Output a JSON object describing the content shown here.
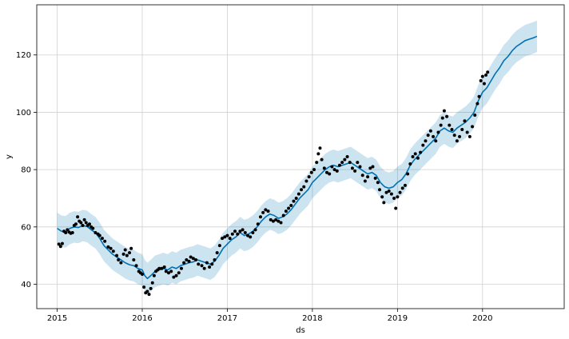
{
  "chart_data": {
    "type": "line",
    "title": "",
    "xlabel": "ds",
    "ylabel": "y",
    "x_tick_labels": [
      "2015",
      "2016",
      "2017",
      "2018",
      "2019",
      "2020"
    ],
    "y_tick_labels": [
      "40",
      "60",
      "80",
      "100",
      "120"
    ],
    "x_ticks": [
      2015,
      2016,
      2017,
      2018,
      2019,
      2020
    ],
    "y_ticks": [
      40,
      60,
      80,
      100,
      120
    ],
    "xlim": [
      2014.76,
      2020.96
    ],
    "ylim": [
      31.5,
      137.5
    ],
    "grid": true,
    "colors": {
      "forecast": "#0072B2",
      "interval": "#0072B2",
      "observed": "#000000",
      "grid": "#d0d0d0"
    },
    "series": [
      {
        "kind": "forecast-line",
        "points": [
          [
            2015.0,
            59.5
          ],
          [
            2015.05,
            58.5
          ],
          [
            2015.1,
            58.3
          ],
          [
            2015.15,
            59.5
          ],
          [
            2015.2,
            60.0
          ],
          [
            2015.25,
            59.8
          ],
          [
            2015.3,
            60.5
          ],
          [
            2015.35,
            60.2
          ],
          [
            2015.4,
            59.0
          ],
          [
            2015.45,
            58.0
          ],
          [
            2015.5,
            56.0
          ],
          [
            2015.55,
            53.5
          ],
          [
            2015.6,
            52.0
          ],
          [
            2015.65,
            50.5
          ],
          [
            2015.7,
            49.5
          ],
          [
            2015.75,
            48.5
          ],
          [
            2015.8,
            47.5
          ],
          [
            2015.85,
            46.8
          ],
          [
            2015.9,
            46.5
          ],
          [
            2015.95,
            45.5
          ],
          [
            2016.0,
            45.0
          ],
          [
            2016.03,
            43.0
          ],
          [
            2016.06,
            42.0
          ],
          [
            2016.1,
            43.0
          ],
          [
            2016.15,
            44.5
          ],
          [
            2016.2,
            45.0
          ],
          [
            2016.25,
            45.5
          ],
          [
            2016.3,
            45.0
          ],
          [
            2016.35,
            46.0
          ],
          [
            2016.4,
            45.5
          ],
          [
            2016.45,
            46.5
          ],
          [
            2016.5,
            47.0
          ],
          [
            2016.55,
            47.5
          ],
          [
            2016.6,
            47.8
          ],
          [
            2016.65,
            48.5
          ],
          [
            2016.7,
            48.0
          ],
          [
            2016.75,
            47.5
          ],
          [
            2016.8,
            47.0
          ],
          [
            2016.85,
            48.0
          ],
          [
            2016.9,
            50.0
          ],
          [
            2016.95,
            52.5
          ],
          [
            2017.0,
            54.0
          ],
          [
            2017.05,
            55.5
          ],
          [
            2017.1,
            56.5
          ],
          [
            2017.15,
            58.0
          ],
          [
            2017.2,
            57.0
          ],
          [
            2017.25,
            57.5
          ],
          [
            2017.3,
            58.5
          ],
          [
            2017.35,
            60.0
          ],
          [
            2017.4,
            62.0
          ],
          [
            2017.45,
            63.5
          ],
          [
            2017.5,
            64.5
          ],
          [
            2017.55,
            64.0
          ],
          [
            2017.6,
            63.0
          ],
          [
            2017.65,
            63.5
          ],
          [
            2017.7,
            64.5
          ],
          [
            2017.75,
            66.0
          ],
          [
            2017.8,
            68.0
          ],
          [
            2017.85,
            70.0
          ],
          [
            2017.9,
            71.5
          ],
          [
            2017.95,
            73.0
          ],
          [
            2018.0,
            75.5
          ],
          [
            2018.05,
            77.0
          ],
          [
            2018.1,
            78.5
          ],
          [
            2018.15,
            80.0
          ],
          [
            2018.2,
            81.0
          ],
          [
            2018.25,
            81.5
          ],
          [
            2018.3,
            81.0
          ],
          [
            2018.35,
            81.5
          ],
          [
            2018.4,
            82.0
          ],
          [
            2018.45,
            82.5
          ],
          [
            2018.5,
            81.5
          ],
          [
            2018.55,
            80.5
          ],
          [
            2018.6,
            79.5
          ],
          [
            2018.65,
            78.5
          ],
          [
            2018.7,
            79.0
          ],
          [
            2018.75,
            78.0
          ],
          [
            2018.8,
            75.5
          ],
          [
            2018.85,
            74.0
          ],
          [
            2018.9,
            73.5
          ],
          [
            2018.95,
            74.0
          ],
          [
            2019.0,
            75.5
          ],
          [
            2019.05,
            76.5
          ],
          [
            2019.1,
            78.5
          ],
          [
            2019.15,
            81.5
          ],
          [
            2019.2,
            83.5
          ],
          [
            2019.25,
            85.0
          ],
          [
            2019.3,
            86.5
          ],
          [
            2019.35,
            88.0
          ],
          [
            2019.4,
            89.5
          ],
          [
            2019.45,
            91.0
          ],
          [
            2019.5,
            93.5
          ],
          [
            2019.55,
            94.5
          ],
          [
            2019.6,
            93.5
          ],
          [
            2019.65,
            93.0
          ],
          [
            2019.7,
            94.5
          ],
          [
            2019.75,
            95.5
          ],
          [
            2019.8,
            96.5
          ],
          [
            2019.85,
            98.0
          ],
          [
            2019.9,
            100.0
          ],
          [
            2019.95,
            104.0
          ],
          [
            2020.0,
            107.0
          ],
          [
            2020.05,
            108.5
          ],
          [
            2020.1,
            111.0
          ],
          [
            2020.15,
            113.5
          ],
          [
            2020.2,
            115.5
          ],
          [
            2020.25,
            118.0
          ],
          [
            2020.3,
            119.5
          ],
          [
            2020.35,
            121.5
          ],
          [
            2020.4,
            123.0
          ],
          [
            2020.45,
            124.0
          ],
          [
            2020.5,
            125.0
          ],
          [
            2020.55,
            125.5
          ],
          [
            2020.6,
            126.0
          ],
          [
            2020.64,
            126.5
          ]
        ]
      },
      {
        "kind": "uncertainty-interval",
        "half_width": 5.5
      },
      {
        "kind": "observed-points",
        "points": [
          [
            2015.02,
            54.0
          ],
          [
            2015.04,
            53.2
          ],
          [
            2015.06,
            54.2
          ],
          [
            2015.08,
            58.5
          ],
          [
            2015.1,
            58.0
          ],
          [
            2015.12,
            59.0
          ],
          [
            2015.14,
            58.2
          ],
          [
            2015.16,
            57.8
          ],
          [
            2015.18,
            58.0
          ],
          [
            2015.2,
            60.5
          ],
          [
            2015.22,
            61.0
          ],
          [
            2015.24,
            63.5
          ],
          [
            2015.26,
            62.0
          ],
          [
            2015.28,
            61.5
          ],
          [
            2015.3,
            60.5
          ],
          [
            2015.32,
            62.5
          ],
          [
            2015.34,
            61.5
          ],
          [
            2015.36,
            60.5
          ],
          [
            2015.38,
            61.0
          ],
          [
            2015.4,
            60.0
          ],
          [
            2015.42,
            59.5
          ],
          [
            2015.45,
            58.0
          ],
          [
            2015.48,
            57.5
          ],
          [
            2015.5,
            57.0
          ],
          [
            2015.53,
            56.0
          ],
          [
            2015.56,
            55.0
          ],
          [
            2015.6,
            53.0
          ],
          [
            2015.63,
            52.5
          ],
          [
            2015.66,
            51.5
          ],
          [
            2015.7,
            50.0
          ],
          [
            2015.72,
            48.5
          ],
          [
            2015.75,
            47.5
          ],
          [
            2015.78,
            50.5
          ],
          [
            2015.8,
            52.0
          ],
          [
            2015.82,
            50.0
          ],
          [
            2015.85,
            51.0
          ],
          [
            2015.87,
            52.5
          ],
          [
            2015.9,
            48.5
          ],
          [
            2015.93,
            46.5
          ],
          [
            2015.96,
            44.5
          ],
          [
            2015.98,
            44.0
          ],
          [
            2016.0,
            43.5
          ],
          [
            2016.02,
            39.0
          ],
          [
            2016.04,
            37.0
          ],
          [
            2016.06,
            37.5
          ],
          [
            2016.08,
            36.5
          ],
          [
            2016.1,
            38.5
          ],
          [
            2016.12,
            40.5
          ],
          [
            2016.14,
            43.0
          ],
          [
            2016.16,
            44.5
          ],
          [
            2016.18,
            45.0
          ],
          [
            2016.2,
            45.5
          ],
          [
            2016.23,
            45.5
          ],
          [
            2016.26,
            46.0
          ],
          [
            2016.28,
            44.5
          ],
          [
            2016.31,
            44.0
          ],
          [
            2016.34,
            44.5
          ],
          [
            2016.37,
            42.5
          ],
          [
            2016.4,
            43.0
          ],
          [
            2016.43,
            44.0
          ],
          [
            2016.46,
            45.5
          ],
          [
            2016.49,
            47.5
          ],
          [
            2016.52,
            48.5
          ],
          [
            2016.55,
            48.0
          ],
          [
            2016.57,
            49.5
          ],
          [
            2016.6,
            49.0
          ],
          [
            2016.63,
            48.5
          ],
          [
            2016.66,
            47.0
          ],
          [
            2016.7,
            46.5
          ],
          [
            2016.73,
            45.5
          ],
          [
            2016.76,
            47.5
          ],
          [
            2016.79,
            46.0
          ],
          [
            2016.82,
            47.0
          ],
          [
            2016.85,
            48.5
          ],
          [
            2016.88,
            51.0
          ],
          [
            2016.91,
            53.5
          ],
          [
            2016.94,
            56.0
          ],
          [
            2016.97,
            56.5
          ],
          [
            2017.0,
            57.0
          ],
          [
            2017.03,
            56.0
          ],
          [
            2017.06,
            57.5
          ],
          [
            2017.09,
            58.5
          ],
          [
            2017.12,
            57.5
          ],
          [
            2017.15,
            58.5
          ],
          [
            2017.18,
            59.0
          ],
          [
            2017.21,
            58.0
          ],
          [
            2017.24,
            57.0
          ],
          [
            2017.27,
            56.5
          ],
          [
            2017.3,
            58.0
          ],
          [
            2017.33,
            59.0
          ],
          [
            2017.36,
            61.0
          ],
          [
            2017.39,
            63.5
          ],
          [
            2017.42,
            65.0
          ],
          [
            2017.45,
            66.0
          ],
          [
            2017.48,
            65.5
          ],
          [
            2017.51,
            62.5
          ],
          [
            2017.54,
            62.0
          ],
          [
            2017.57,
            62.5
          ],
          [
            2017.6,
            62.0
          ],
          [
            2017.63,
            61.5
          ],
          [
            2017.66,
            64.0
          ],
          [
            2017.69,
            65.5
          ],
          [
            2017.72,
            66.5
          ],
          [
            2017.75,
            67.5
          ],
          [
            2017.78,
            69.0
          ],
          [
            2017.81,
            70.0
          ],
          [
            2017.84,
            71.5
          ],
          [
            2017.87,
            73.0
          ],
          [
            2017.9,
            74.0
          ],
          [
            2017.93,
            76.0
          ],
          [
            2017.96,
            77.5
          ],
          [
            2017.99,
            79.0
          ],
          [
            2018.02,
            80.0
          ],
          [
            2018.05,
            82.5
          ],
          [
            2018.07,
            85.5
          ],
          [
            2018.09,
            87.5
          ],
          [
            2018.11,
            83.5
          ],
          [
            2018.14,
            80.5
          ],
          [
            2018.17,
            79.0
          ],
          [
            2018.2,
            78.5
          ],
          [
            2018.23,
            81.0
          ],
          [
            2018.26,
            80.0
          ],
          [
            2018.29,
            79.5
          ],
          [
            2018.32,
            81.5
          ],
          [
            2018.35,
            82.5
          ],
          [
            2018.38,
            83.5
          ],
          [
            2018.41,
            84.5
          ],
          [
            2018.44,
            82.5
          ],
          [
            2018.47,
            80.5
          ],
          [
            2018.5,
            79.5
          ],
          [
            2018.53,
            82.5
          ],
          [
            2018.56,
            81.0
          ],
          [
            2018.59,
            78.0
          ],
          [
            2018.62,
            76.0
          ],
          [
            2018.65,
            77.5
          ],
          [
            2018.68,
            80.5
          ],
          [
            2018.71,
            81.0
          ],
          [
            2018.74,
            77.0
          ],
          [
            2018.77,
            75.5
          ],
          [
            2018.79,
            73.0
          ],
          [
            2018.82,
            70.5
          ],
          [
            2018.84,
            68.5
          ],
          [
            2018.87,
            72.0
          ],
          [
            2018.9,
            72.5
          ],
          [
            2018.93,
            71.5
          ],
          [
            2018.96,
            70.0
          ],
          [
            2018.98,
            66.5
          ],
          [
            2019.0,
            70.5
          ],
          [
            2019.03,
            72.0
          ],
          [
            2019.06,
            73.5
          ],
          [
            2019.09,
            74.5
          ],
          [
            2019.12,
            78.5
          ],
          [
            2019.15,
            82.0
          ],
          [
            2019.18,
            84.5
          ],
          [
            2019.21,
            85.5
          ],
          [
            2019.24,
            84.0
          ],
          [
            2019.27,
            86.0
          ],
          [
            2019.3,
            88.5
          ],
          [
            2019.33,
            90.0
          ],
          [
            2019.36,
            92.0
          ],
          [
            2019.39,
            93.5
          ],
          [
            2019.42,
            91.5
          ],
          [
            2019.45,
            90.0
          ],
          [
            2019.48,
            93.0
          ],
          [
            2019.51,
            95.5
          ],
          [
            2019.53,
            98.0
          ],
          [
            2019.55,
            100.5
          ],
          [
            2019.58,
            98.5
          ],
          [
            2019.61,
            95.5
          ],
          [
            2019.64,
            94.0
          ],
          [
            2019.67,
            92.0
          ],
          [
            2019.7,
            90.0
          ],
          [
            2019.73,
            91.5
          ],
          [
            2019.76,
            94.0
          ],
          [
            2019.79,
            97.0
          ],
          [
            2019.82,
            93.0
          ],
          [
            2019.85,
            91.5
          ],
          [
            2019.88,
            95.0
          ],
          [
            2019.91,
            99.0
          ],
          [
            2019.94,
            103.0
          ],
          [
            2019.96,
            105.5
          ],
          [
            2019.98,
            111.0
          ],
          [
            2020.0,
            112.5
          ],
          [
            2020.02,
            110.0
          ],
          [
            2020.04,
            113.0
          ],
          [
            2020.06,
            114.0
          ]
        ]
      }
    ]
  }
}
